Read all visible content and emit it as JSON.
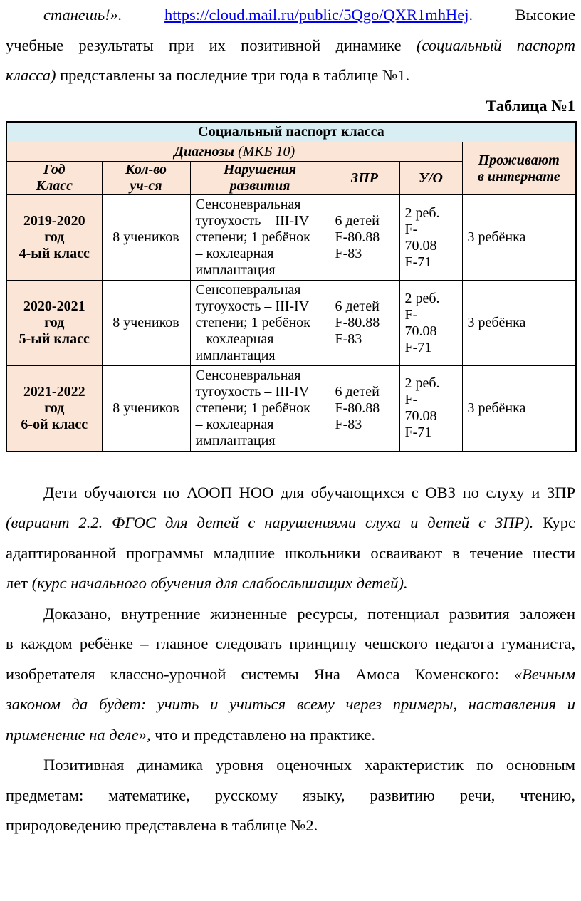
{
  "colors": {
    "table_title_bg": "#d9eef3",
    "table_header_bg": "#fbe5d6",
    "link_blue": "#0000ee",
    "border": "#000000",
    "text": "#000000"
  },
  "table_caption": "Таблица №1",
  "top_paragraph": {
    "lines": [
      {
        "indent": true,
        "last": false,
        "segs": [
          {
            "t": "станешь!». ",
            "i": true
          },
          {
            "t": "https://cloud.mail.ru/public/5Qgo/QXR1mhHej",
            "l": true
          },
          {
            "t": ". Высокие"
          }
        ]
      },
      {
        "indent": false,
        "last": false,
        "segs": [
          {
            "t": "учебные результаты при их позитивной динамике "
          },
          {
            "t": "(социальный паспорт",
            "i": true
          }
        ]
      },
      {
        "indent": false,
        "last": true,
        "segs": [
          {
            "t": "класса)",
            "i": true
          },
          {
            "t": " представлены за последние три года в таблице №1."
          }
        ]
      }
    ]
  },
  "table": {
    "title": "Социальный паспорт класса",
    "diagnoses_bold": "Диагнозы",
    "diagnoses_italic": " (МКБ 10)",
    "residence_lines": [
      "Проживают",
      "в интернате"
    ],
    "column_headers": [
      [
        "Год",
        "Класс"
      ],
      [
        "Кол-во",
        "уч-ся"
      ],
      [
        "Нарушения",
        "развития"
      ],
      [
        "ЗПР"
      ],
      [
        "У/О"
      ]
    ],
    "rows": [
      {
        "year_lines": [
          "2019-2020",
          "год",
          "4-ый класс"
        ],
        "count": "8 учеников",
        "disorder_lines": [
          "Сенсоневральная",
          "тугоухость – III-IV",
          "степени; 1 ребёнок",
          "– кохлеарная",
          "имплантация"
        ],
        "zpr_lines": [
          "6 детей",
          "F-80.88",
          "F-83"
        ],
        "uo_lines": [
          "2 реб.",
          "F-",
          "70.08",
          "F-71"
        ],
        "boarding": "3 ребёнка"
      },
      {
        "year_lines": [
          "2020-2021",
          "год",
          "5-ый класс"
        ],
        "count": "8 учеников",
        "disorder_lines": [
          "Сенсоневральная",
          "тугоухость – III-IV",
          "степени; 1 ребёнок",
          "– кохлеарная",
          "имплантация"
        ],
        "zpr_lines": [
          "6 детей",
          "F-80.88",
          "F-83"
        ],
        "uo_lines": [
          "2 реб.",
          "F-",
          "70.08",
          "F-71"
        ],
        "boarding": "3 ребёнка"
      },
      {
        "year_lines": [
          "2021-2022",
          "год",
          "6-ой класс"
        ],
        "count": "8 учеников",
        "disorder_lines": [
          "Сенсоневральная",
          "тугоухость – III-IV",
          "степени; 1 ребёнок",
          "– кохлеарная",
          "имплантация"
        ],
        "zpr_lines": [
          "6 детей",
          "F-80.88",
          "F-83"
        ],
        "uo_lines": [
          "2 реб.",
          "F-",
          "70.08",
          "F-71"
        ],
        "boarding": "3 ребёнка"
      }
    ]
  },
  "paragraphs": [
    {
      "lines": [
        {
          "indent": true,
          "last": false,
          "segs": [
            {
              "t": "Дети обучаются по АООП НОО для обучающихся с ОВЗ по слуху и ЗПР"
            }
          ]
        },
        {
          "indent": false,
          "last": false,
          "segs": [
            {
              "t": "(вариант 2.2. ФГОС для детей с нарушениями слуха и детей с ЗПР).",
              "i": true
            },
            {
              "t": " Курс"
            }
          ]
        },
        {
          "indent": false,
          "last": false,
          "segs": [
            {
              "t": "адаптированной программы младшие школьники осваивают в течение шести"
            }
          ]
        },
        {
          "indent": false,
          "last": true,
          "segs": [
            {
              "t": "лет "
            },
            {
              "t": "(курс начального обучения для слабослышащих детей).",
              "i": true
            }
          ]
        }
      ]
    },
    {
      "lines": [
        {
          "indent": true,
          "last": false,
          "segs": [
            {
              "t": "Доказано, внутренние жизненные ресурсы, потенциал развития заложен"
            }
          ]
        },
        {
          "indent": false,
          "last": false,
          "segs": [
            {
              "t": "в каждом ребёнке – главное следовать принципу чешского педагога гуманиста,"
            }
          ]
        },
        {
          "indent": false,
          "last": false,
          "segs": [
            {
              "t": "изобретателя классно-урочной системы Яна Амоса Коменского: "
            },
            {
              "t": "«Вечным",
              "i": true
            }
          ]
        },
        {
          "indent": false,
          "last": false,
          "segs": [
            {
              "t": "законом да будет: учить и учиться всему через примеры, наставления и",
              "i": true
            }
          ]
        },
        {
          "indent": false,
          "last": true,
          "segs": [
            {
              "t": "применение на деле»,",
              "i": true
            },
            {
              "t": " что и представлено на практике."
            }
          ]
        }
      ]
    },
    {
      "lines": [
        {
          "indent": true,
          "last": false,
          "segs": [
            {
              "t": "Позитивная динамика уровня оценочных характеристик по основным"
            }
          ]
        },
        {
          "indent": false,
          "last": false,
          "segs": [
            {
              "t": "предметам: математике, русскому языку, развитию речи, чтению,"
            }
          ]
        },
        {
          "indent": false,
          "last": true,
          "segs": [
            {
              "t": "природоведению представлена в таблице №2."
            }
          ]
        }
      ]
    }
  ]
}
